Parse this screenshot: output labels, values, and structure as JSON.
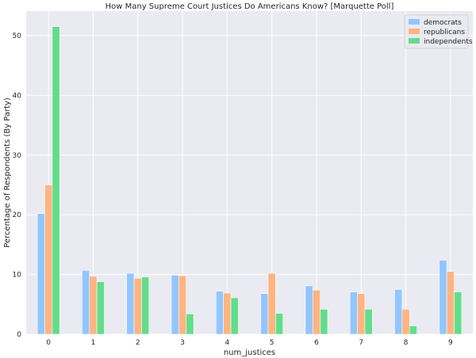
{
  "chart_data": {
    "type": "bar",
    "title": "How Many Supreme Court Justices Do Americans Know? [Marquette Poll]",
    "xlabel": "num_justices",
    "ylabel": "Percentage of Respondents (By Party)",
    "categories": [
      "0",
      "1",
      "2",
      "3",
      "4",
      "5",
      "6",
      "7",
      "8",
      "9"
    ],
    "series": [
      {
        "name": "democrats",
        "color": "#92c6ff",
        "values": [
          20.2,
          10.7,
          10.2,
          9.9,
          7.2,
          6.8,
          8.1,
          7.1,
          7.5,
          12.4
        ]
      },
      {
        "name": "republicans",
        "color": "#ffb482",
        "values": [
          25.0,
          9.7,
          9.4,
          9.8,
          6.9,
          10.2,
          7.4,
          6.8,
          4.2,
          10.5
        ]
      },
      {
        "name": "independents",
        "color": "#62de8a",
        "values": [
          51.5,
          8.8,
          9.6,
          3.4,
          6.1,
          3.5,
          4.2,
          4.2,
          1.4,
          7.1
        ]
      }
    ],
    "yticks": [
      0,
      10,
      20,
      30,
      40,
      50
    ],
    "ylim": [
      0,
      54.1
    ],
    "grid": true,
    "legend_position": "top-right",
    "background": "#eaeaf2"
  }
}
